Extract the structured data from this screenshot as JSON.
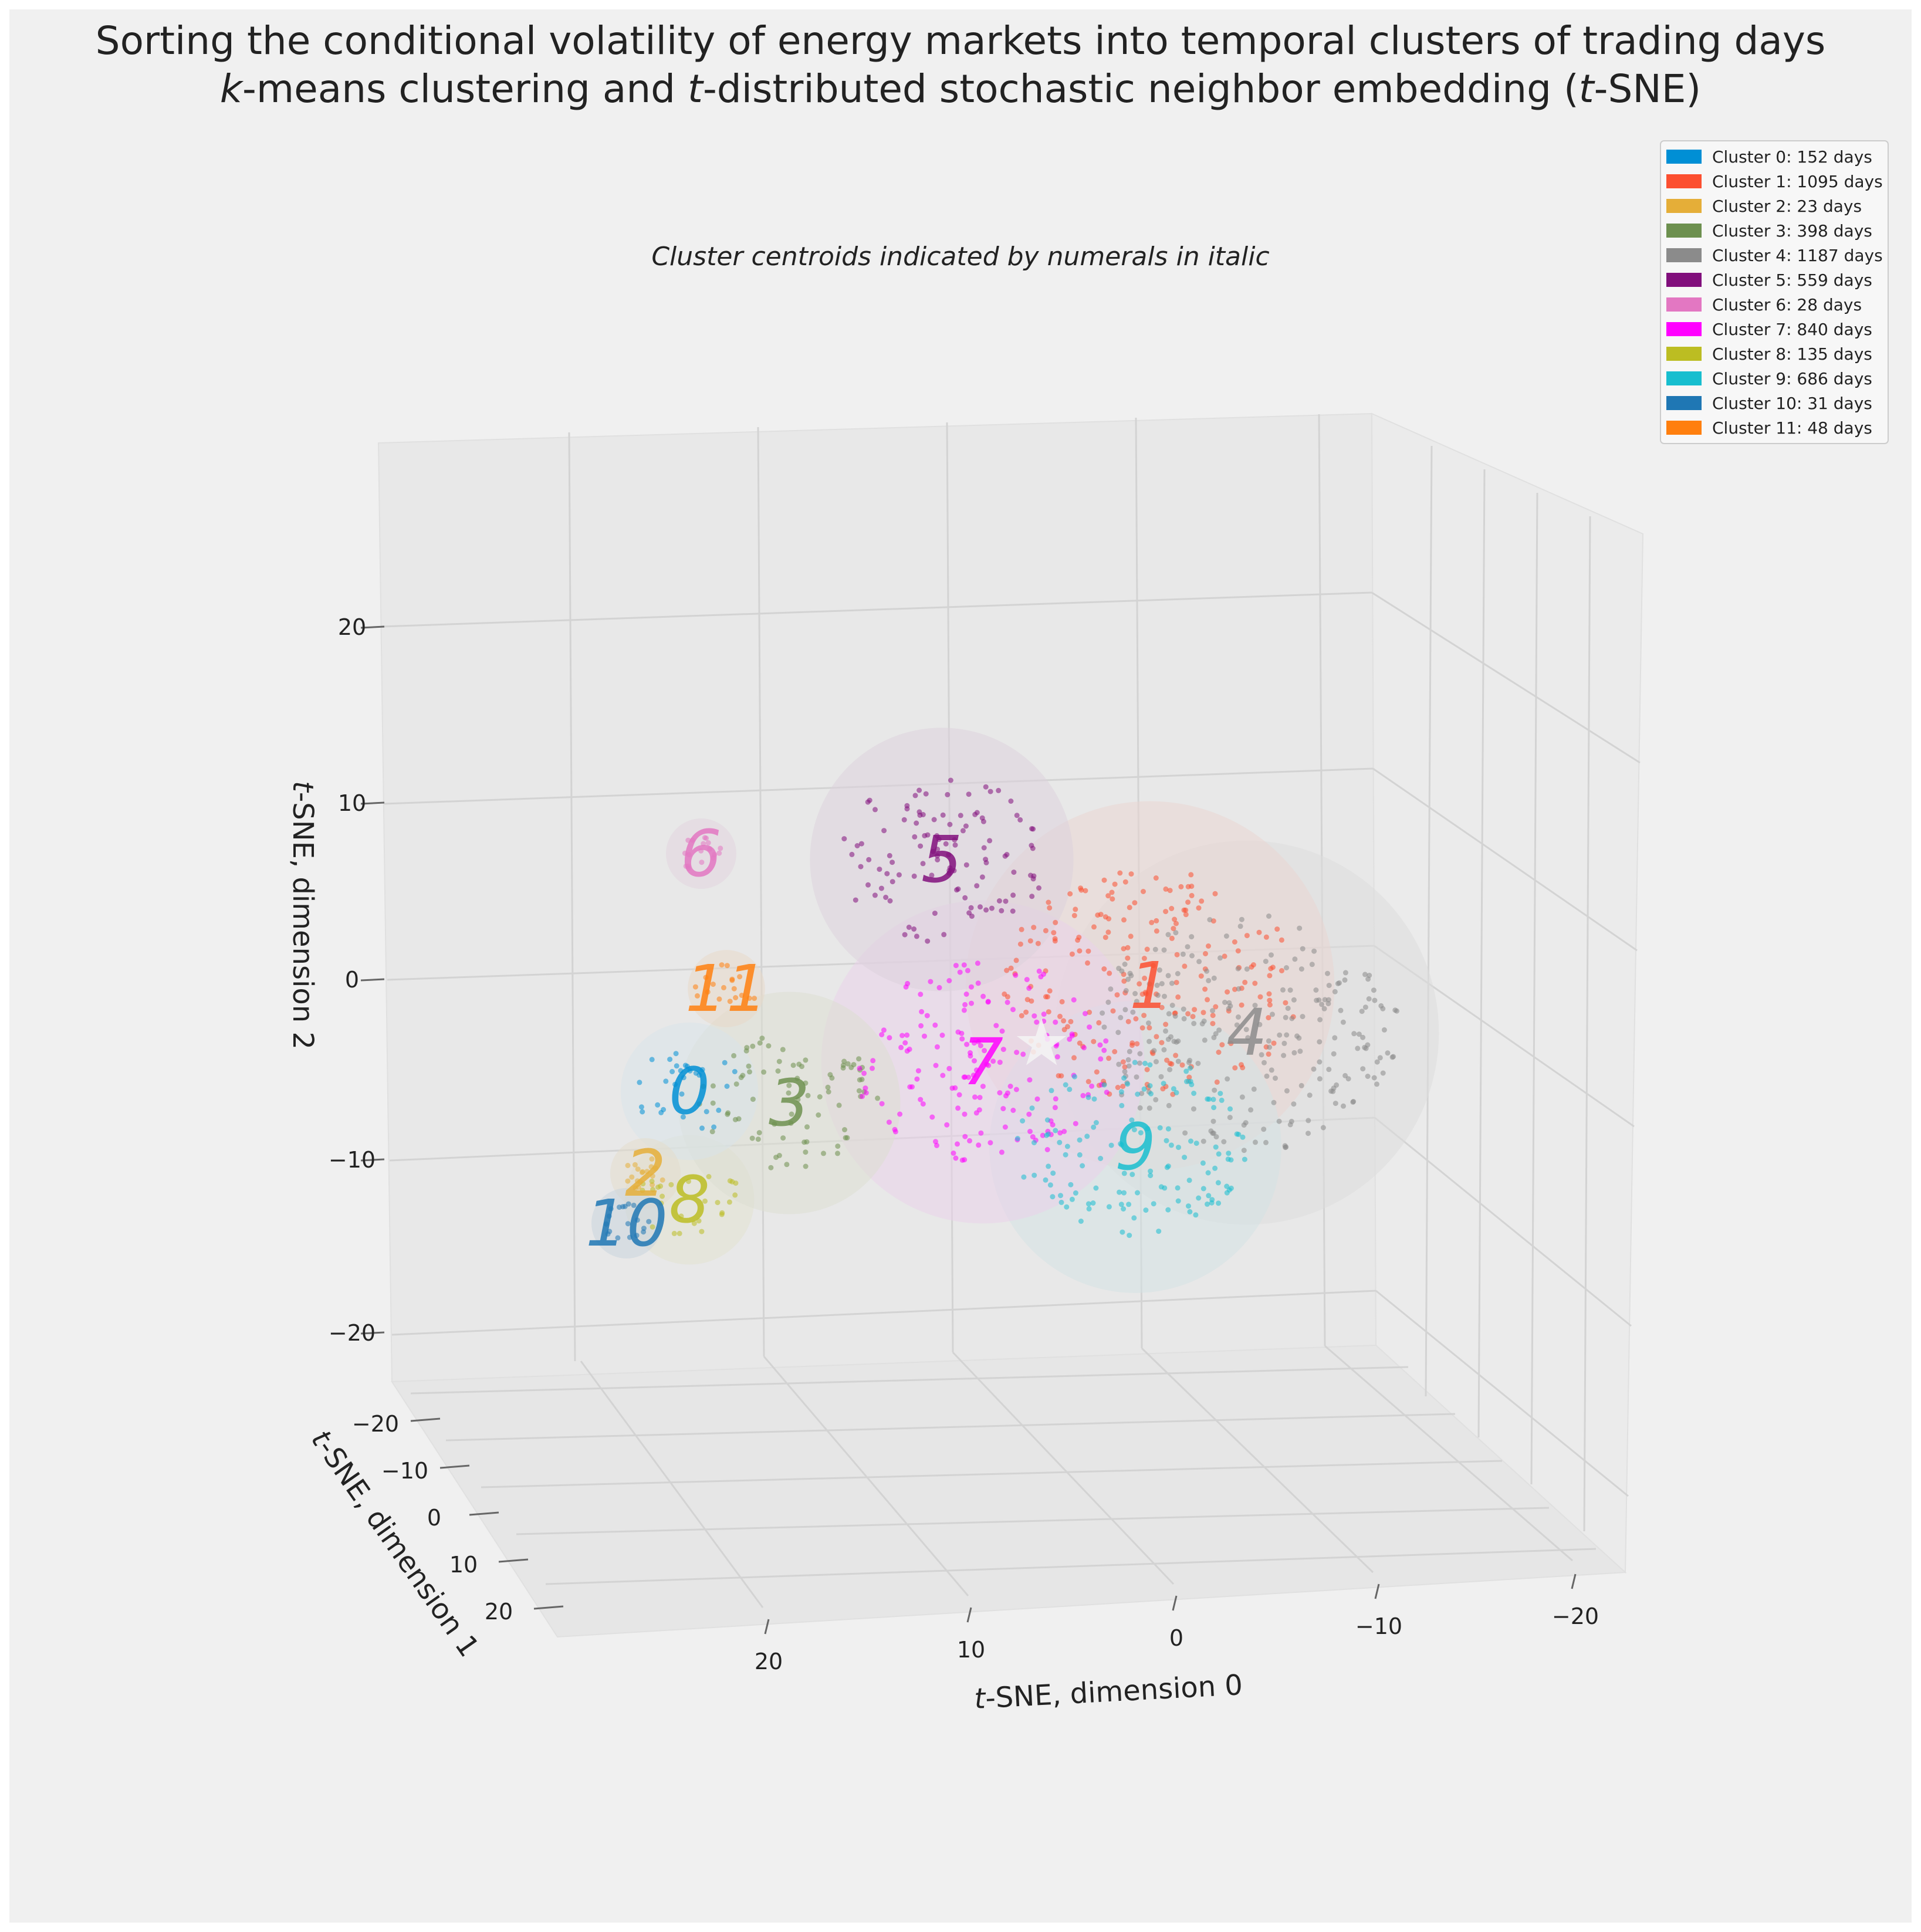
{
  "chart_data": {
    "type": "scatter",
    "projection": "3d",
    "title_line1": "Sorting the conditional volatility of energy markets into temporal clusters of trading days",
    "title_line2_parts": [
      {
        "text": "k",
        "italic": true
      },
      {
        "text": "-means clustering and ",
        "italic": false
      },
      {
        "text": "t",
        "italic": true
      },
      {
        "text": "-distributed stochastic neighbor embedding (",
        "italic": false
      },
      {
        "text": "t",
        "italic": true
      },
      {
        "text": "-SNE)",
        "italic": false
      }
    ],
    "subtitle": "Cluster centroids indicated by numerals in italic",
    "xlabel_parts": [
      {
        "text": "t",
        "italic": true
      },
      {
        "text": "-SNE, dimension 0",
        "italic": false
      }
    ],
    "ylabel_parts": [
      {
        "text": "t",
        "italic": true
      },
      {
        "text": "-SNE, dimension 1",
        "italic": false
      }
    ],
    "zlabel_parts": [
      {
        "text": "t",
        "italic": true
      },
      {
        "text": "-SNE, dimension 2",
        "italic": false
      }
    ],
    "x_ticks": [
      "20",
      "10",
      "0",
      "−10",
      "−20"
    ],
    "y_ticks": [
      "−20",
      "−10",
      "0",
      "10",
      "20"
    ],
    "z_ticks": [
      "20",
      "10",
      "0",
      "−10",
      "−20"
    ],
    "legend_position": "top-right",
    "clusters": [
      {
        "id": 0,
        "label": "Cluster 0: 152 days",
        "days": 152,
        "color": "#008fd5",
        "centroid": [
          22,
          5,
          -6
        ],
        "numeral": "0"
      },
      {
        "id": 1,
        "label": "Cluster 1: 1095 days",
        "days": 1095,
        "color": "#fc4f30",
        "centroid": [
          -4,
          -2,
          1
        ],
        "numeral": "1"
      },
      {
        "id": 2,
        "label": "Cluster 2: 23 days",
        "days": 23,
        "color": "#e5ae38",
        "centroid": [
          24,
          8,
          -11
        ],
        "numeral": "2"
      },
      {
        "id": 3,
        "label": "Cluster 3: 398 days",
        "days": 398,
        "color": "#6d904f",
        "centroid": [
          18,
          3,
          -7
        ],
        "numeral": "3"
      },
      {
        "id": 4,
        "label": "Cluster 4: 1187 days",
        "days": 1187,
        "color": "#8b8b8b",
        "centroid": [
          -9,
          -5,
          -3
        ],
        "numeral": "4"
      },
      {
        "id": 5,
        "label": "Cluster 5: 559 days",
        "days": 559,
        "color": "#810f7c",
        "centroid": [
          6,
          2,
          7
        ],
        "numeral": "5"
      },
      {
        "id": 6,
        "label": "Cluster 6: 28 days",
        "days": 28,
        "color": "#e377c2",
        "centroid": [
          21,
          0,
          8
        ],
        "numeral": "6"
      },
      {
        "id": 7,
        "label": "Cluster 7: 840 days",
        "days": 840,
        "color": "#ff00ff",
        "centroid": [
          5,
          1,
          -5
        ],
        "numeral": "7"
      },
      {
        "id": 8,
        "label": "Cluster 8: 135 days",
        "days": 135,
        "color": "#bcbd22",
        "centroid": [
          23,
          9,
          -12
        ],
        "numeral": "8"
      },
      {
        "id": 9,
        "label": "Cluster 9: 686 days",
        "days": 686,
        "color": "#17becf",
        "centroid": [
          -3,
          -4,
          -10
        ],
        "numeral": "9"
      },
      {
        "id": 10,
        "label": "Cluster 10: 31 days",
        "days": 31,
        "color": "#1f77b4",
        "centroid": [
          26,
          10,
          -13
        ],
        "numeral": "10"
      },
      {
        "id": 11,
        "label": "Cluster 11: 48 days",
        "days": 48,
        "color": "#ff7f0e",
        "centroid": [
          19,
          2,
          0
        ],
        "numeral": "11"
      }
    ],
    "overall_marker": "★"
  }
}
